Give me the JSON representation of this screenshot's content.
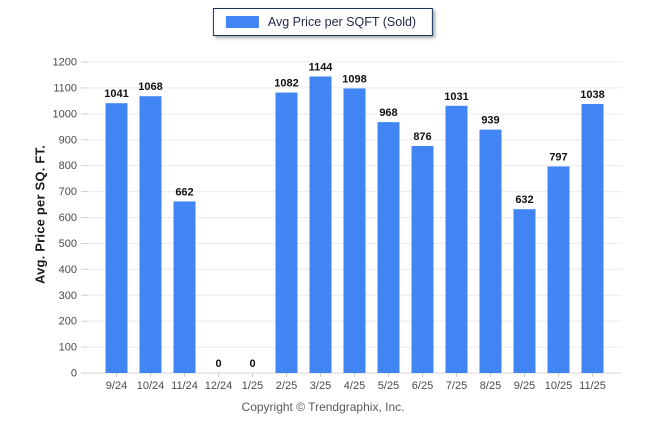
{
  "legend": {
    "label": "Avg Price per SQFT (Sold)",
    "swatch_color": "#4184f3"
  },
  "chart_data": {
    "type": "bar",
    "title": "",
    "categories": [
      "9/24",
      "10/24",
      "11/24",
      "12/24",
      "1/25",
      "2/25",
      "3/25",
      "4/25",
      "5/25",
      "6/25",
      "7/25",
      "8/25",
      "9/25",
      "10/25",
      "11/25"
    ],
    "series": [
      {
        "name": "Avg Price per SQFT (Sold)",
        "values": [
          1041,
          1068,
          662,
          0,
          0,
          1082,
          1144,
          1098,
          968,
          876,
          1031,
          939,
          632,
          797,
          1038
        ]
      }
    ],
    "xlabel": "",
    "ylabel": "Avg. Price per SQ. FT.",
    "ylim": [
      0,
      1200
    ],
    "ytick_step": 100,
    "grid": true,
    "legend_position": "top",
    "bar_color": "#4184f3",
    "gridline_color": "#ebebeb",
    "baseline_color": "#d9d9d9",
    "tick_color": "#cfcfcf"
  },
  "footer": {
    "text": "Copyright © Trendgraphix, Inc."
  }
}
